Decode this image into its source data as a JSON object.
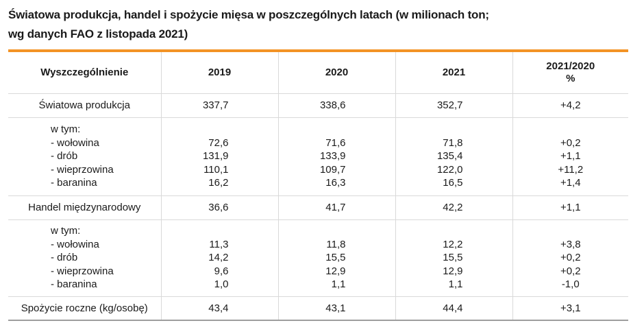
{
  "title_line1": "Światowa produkcja, handel i spożycie mięsa w poszczególnych latach (w milionach ton;",
  "title_line2": "wg danych FAO z listopada 2021)",
  "colors": {
    "accent": "#f39325",
    "grid": "#d9d9d9",
    "text": "#1a1a1a"
  },
  "chart_data": {
    "type": "table",
    "columns": [
      "Wyszczególnienie",
      "2019",
      "2020",
      "2021",
      "2021/2020",
      "%"
    ],
    "rows": {
      "production": {
        "label": "Światowa produkcja",
        "values": [
          "337,7",
          "338,6",
          "352,7",
          "+4,2"
        ]
      },
      "production_breakdown": {
        "header": "w tym:",
        "items": [
          {
            "label": "- wołowina",
            "values": [
              "72,6",
              "71,6",
              "71,8",
              "+0,2"
            ]
          },
          {
            "label": "- drób",
            "values": [
              "131,9",
              "133,9",
              "135,4",
              "+1,1"
            ]
          },
          {
            "label": "- wieprzowina",
            "values": [
              "110,1",
              "109,7",
              "122,0",
              "+11,2"
            ]
          },
          {
            "label": "- baranina",
            "values": [
              "16,2",
              "16,3",
              "16,5",
              "+1,4"
            ]
          }
        ]
      },
      "trade": {
        "label": "Handel międzynarodowy",
        "values": [
          "36,6",
          "41,7",
          "42,2",
          "+1,1"
        ]
      },
      "trade_breakdown": {
        "header": "w tym:",
        "items": [
          {
            "label": "- wołowina",
            "values": [
              "11,3",
              "11,8",
              "12,2",
              "+3,8"
            ]
          },
          {
            "label": "- drób",
            "values": [
              "14,2",
              "15,5",
              "15,5",
              "+0,2"
            ]
          },
          {
            "label": "- wieprzowina",
            "values": [
              "9,6",
              "12,9",
              "12,9",
              "+0,2"
            ]
          },
          {
            "label": "- baranina",
            "values": [
              "1,0",
              "1,1",
              "1,1",
              "-1,0"
            ]
          }
        ]
      },
      "consumption": {
        "label": "Spożycie roczne (kg/osobę)",
        "values": [
          "43,4",
          "43,1",
          "44,4",
          "+3,1"
        ]
      }
    }
  }
}
